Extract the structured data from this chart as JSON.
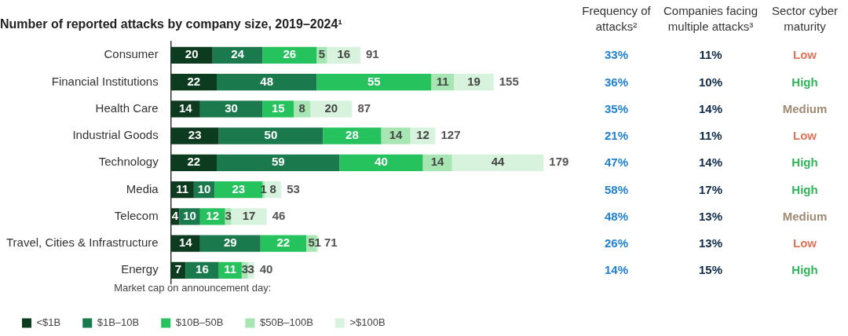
{
  "chart_data": [
    {
      "type": "bar",
      "orientation": "horizontal",
      "stacked": true,
      "title": "Number of reported attacks by company size, 2019–2024¹",
      "legend_title": "Market cap on announcement day:",
      "legend": "bottom",
      "data_labels": true,
      "categories": [
        "Consumer",
        "Financial Institutions",
        "Health Care",
        "Industrial Goods",
        "Technology",
        "Media",
        "Telecom",
        "Travel, Cities & Infrastructure",
        "Energy"
      ],
      "series": [
        {
          "name": "<$1B",
          "color": "#0c3b1f",
          "values": [
            20,
            22,
            14,
            23,
            22,
            11,
            4,
            14,
            7
          ]
        },
        {
          "name": "$1B–10B",
          "color": "#1a7a4e",
          "values": [
            24,
            48,
            30,
            50,
            59,
            10,
            10,
            29,
            16
          ]
        },
        {
          "name": "$10B–50B",
          "color": "#26c25e",
          "values": [
            26,
            55,
            15,
            28,
            40,
            23,
            12,
            22,
            11
          ]
        },
        {
          "name": "$50B–100B",
          "color": "#a7e6b3",
          "values": [
            5,
            11,
            8,
            14,
            14,
            1,
            3,
            5,
            3
          ]
        },
        {
          "name": ">$100B",
          "color": "#d8f3dd",
          "values": [
            16,
            19,
            20,
            12,
            44,
            8,
            17,
            1,
            3
          ]
        }
      ],
      "totals": [
        "91",
        "155",
        "87",
        "127",
        "179",
        "53",
        "46",
        "71",
        "40"
      ]
    },
    {
      "type": "other",
      "categories": [
        "Frequency of attacks²",
        "Companies facing multiple attacks³",
        "Sector cyber maturity"
      ],
      "cell_labels": [
        [
          "33%",
          "11%",
          "Low"
        ],
        [
          "36%",
          "10%",
          "High"
        ],
        [
          "35%",
          "14%",
          "Medium"
        ],
        [
          "21%",
          "11%",
          "Low"
        ],
        [
          "47%",
          "14%",
          "High"
        ],
        [
          "58%",
          "17%",
          "High"
        ],
        [
          "48%",
          "13%",
          "Medium"
        ],
        [
          "26%",
          "13%",
          "Low"
        ],
        [
          "14%",
          "15%",
          "High"
        ]
      ],
      "colors": [
        [
          "#1f7fd1",
          "#0d2a4a",
          "#e3735a"
        ],
        [
          "#1f7fd1",
          "#0d2a4a",
          "#2fb45a"
        ],
        [
          "#1f7fd1",
          "#0d2a4a",
          "#a08a73"
        ],
        [
          "#1f7fd1",
          "#0d2a4a",
          "#e3735a"
        ],
        [
          "#1f7fd1",
          "#0d2a4a",
          "#2fb45a"
        ],
        [
          "#1f7fd1",
          "#0d2a4a",
          "#2fb45a"
        ],
        [
          "#1f7fd1",
          "#0d2a4a",
          "#a08a73"
        ],
        [
          "#1f7fd1",
          "#0d2a4a",
          "#e3735a"
        ],
        [
          "#1f7fd1",
          "#0d2a4a",
          "#2fb45a"
        ]
      ]
    }
  ]
}
